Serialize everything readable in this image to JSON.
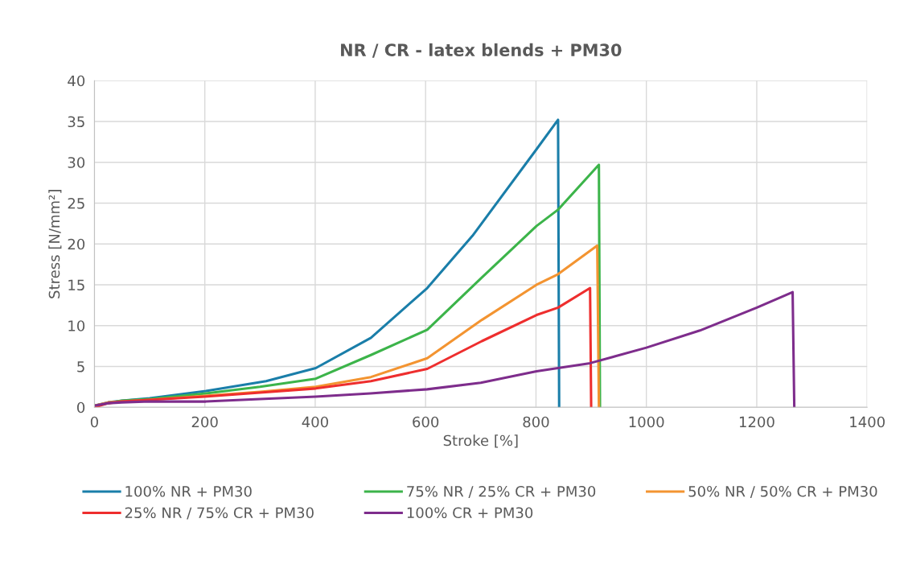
{
  "chart_data": {
    "type": "line",
    "title": "NR / CR - latex blends + PM30",
    "xlabel": "Stroke [%]",
    "ylabel": "Stress [N/mm²]",
    "xlim": [
      0,
      1400
    ],
    "xticks": [
      0,
      200,
      400,
      600,
      800,
      1000,
      1200,
      1400
    ],
    "ylim": [
      0,
      40
    ],
    "yticks": [
      0,
      5,
      10,
      15,
      20,
      25,
      30,
      35,
      40
    ],
    "grid": true,
    "legend": "bottom",
    "marker": "none",
    "line_style": "solid",
    "series": [
      {
        "name": "100% NR + PM30",
        "color": "#1a7ea9",
        "x": [
          0,
          25,
          50,
          100,
          202,
          311,
          401,
          501,
          603,
          685,
          801,
          840,
          842
        ],
        "values": [
          0.2,
          0.6,
          0.8,
          1.1,
          2.0,
          3.2,
          4.8,
          8.5,
          14.6,
          21.0,
          31.6,
          35.2,
          0
        ]
      },
      {
        "name": "75% NR / 25% CR + PM30",
        "color": "#3cb44a",
        "x": [
          0,
          50,
          100,
          202,
          300,
          401,
          501,
          603,
          702,
          801,
          840,
          914,
          916
        ],
        "values": [
          0.2,
          0.8,
          1.0,
          1.7,
          2.5,
          3.5,
          6.4,
          9.5,
          15.9,
          22.2,
          24.2,
          29.7,
          0
        ]
      },
      {
        "name": "50% NR / 50% CR + PM30",
        "color": "#f39431",
        "x": [
          0,
          25,
          50,
          100,
          200,
          300,
          401,
          501,
          603,
          702,
          801,
          840,
          911,
          914
        ],
        "values": [
          0.2,
          0.6,
          0.7,
          0.9,
          1.4,
          1.9,
          2.5,
          3.7,
          6.0,
          10.7,
          15.0,
          16.3,
          19.8,
          0
        ]
      },
      {
        "name": "25% NR / 75% CR + PM30",
        "color": "#ee2e2e",
        "x": [
          0,
          25,
          50,
          100,
          200,
          300,
          401,
          501,
          603,
          702,
          801,
          840,
          898,
          900
        ],
        "values": [
          0.0,
          0.5,
          0.7,
          0.9,
          1.3,
          1.8,
          2.3,
          3.2,
          4.7,
          8.1,
          11.3,
          12.2,
          14.6,
          0
        ]
      },
      {
        "name": "100% CR + PM30",
        "color": "#7e2d8c",
        "x": [
          0,
          25,
          50,
          100,
          202,
          300,
          401,
          500,
          603,
          700,
          801,
          898,
          1000,
          1097,
          1200,
          1265,
          1268
        ],
        "values": [
          0.2,
          0.5,
          0.6,
          0.7,
          0.7,
          1.0,
          1.3,
          1.7,
          2.2,
          3.0,
          4.4,
          5.4,
          7.3,
          9.4,
          12.2,
          14.1,
          0
        ]
      }
    ]
  }
}
